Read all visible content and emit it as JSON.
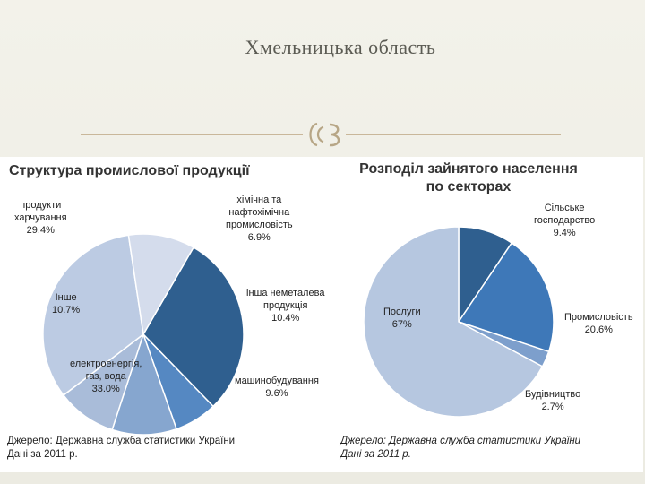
{
  "slide": {
    "title": "Хмельницька область"
  },
  "chart_data": [
    {
      "type": "pie",
      "title": "Структура промислової продукції",
      "slices": [
        {
          "label_lines": [
            "продукти",
            "харчування"
          ],
          "value": 29.4,
          "display": "29.4%",
          "color": "#2f5f8f"
        },
        {
          "label_lines": [
            "хімічна та",
            "нафтохімічна",
            "промисловість"
          ],
          "value": 6.9,
          "display": "6.9%",
          "color": "#5588c2"
        },
        {
          "label_lines": [
            "інша неметалева",
            "продукція"
          ],
          "value": 10.4,
          "display": "10.4%",
          "color": "#86a6cf"
        },
        {
          "label_lines": [
            "машинобудування"
          ],
          "value": 9.6,
          "display": "9.6%",
          "color": "#a9bcd9"
        },
        {
          "label_lines": [
            "електроенергія,",
            "газ, вода"
          ],
          "value": 33.0,
          "display": "33.0%",
          "color": "#bccbe3"
        },
        {
          "label_lines": [
            "Інше"
          ],
          "value": 10.7,
          "display": "10.7%",
          "color": "#d4dcec"
        }
      ],
      "source_lines": [
        "Джерело: Державна служба статистики України",
        "Дані за 2011 р."
      ]
    },
    {
      "type": "pie",
      "title_lines": [
        "Розподіл зайнятого населення",
        "по секторах"
      ],
      "slices": [
        {
          "label_lines": [
            "Сільське",
            "господарство"
          ],
          "value": 9.4,
          "display": "9.4%",
          "color": "#2f5f8f"
        },
        {
          "label_lines": [
            "Промисловість"
          ],
          "value": 20.6,
          "display": "20.6%",
          "color": "#3e78b8"
        },
        {
          "label_lines": [
            "Будівництво"
          ],
          "value": 2.7,
          "display": "2.7%",
          "color": "#7d9fcc"
        },
        {
          "label_lines": [
            "Послуги"
          ],
          "value": 67,
          "display": "67%",
          "color": "#b6c7e0"
        }
      ],
      "source_lines": [
        "Джерело: Державна служба статистики України",
        "Дані за 2011 р."
      ]
    }
  ]
}
